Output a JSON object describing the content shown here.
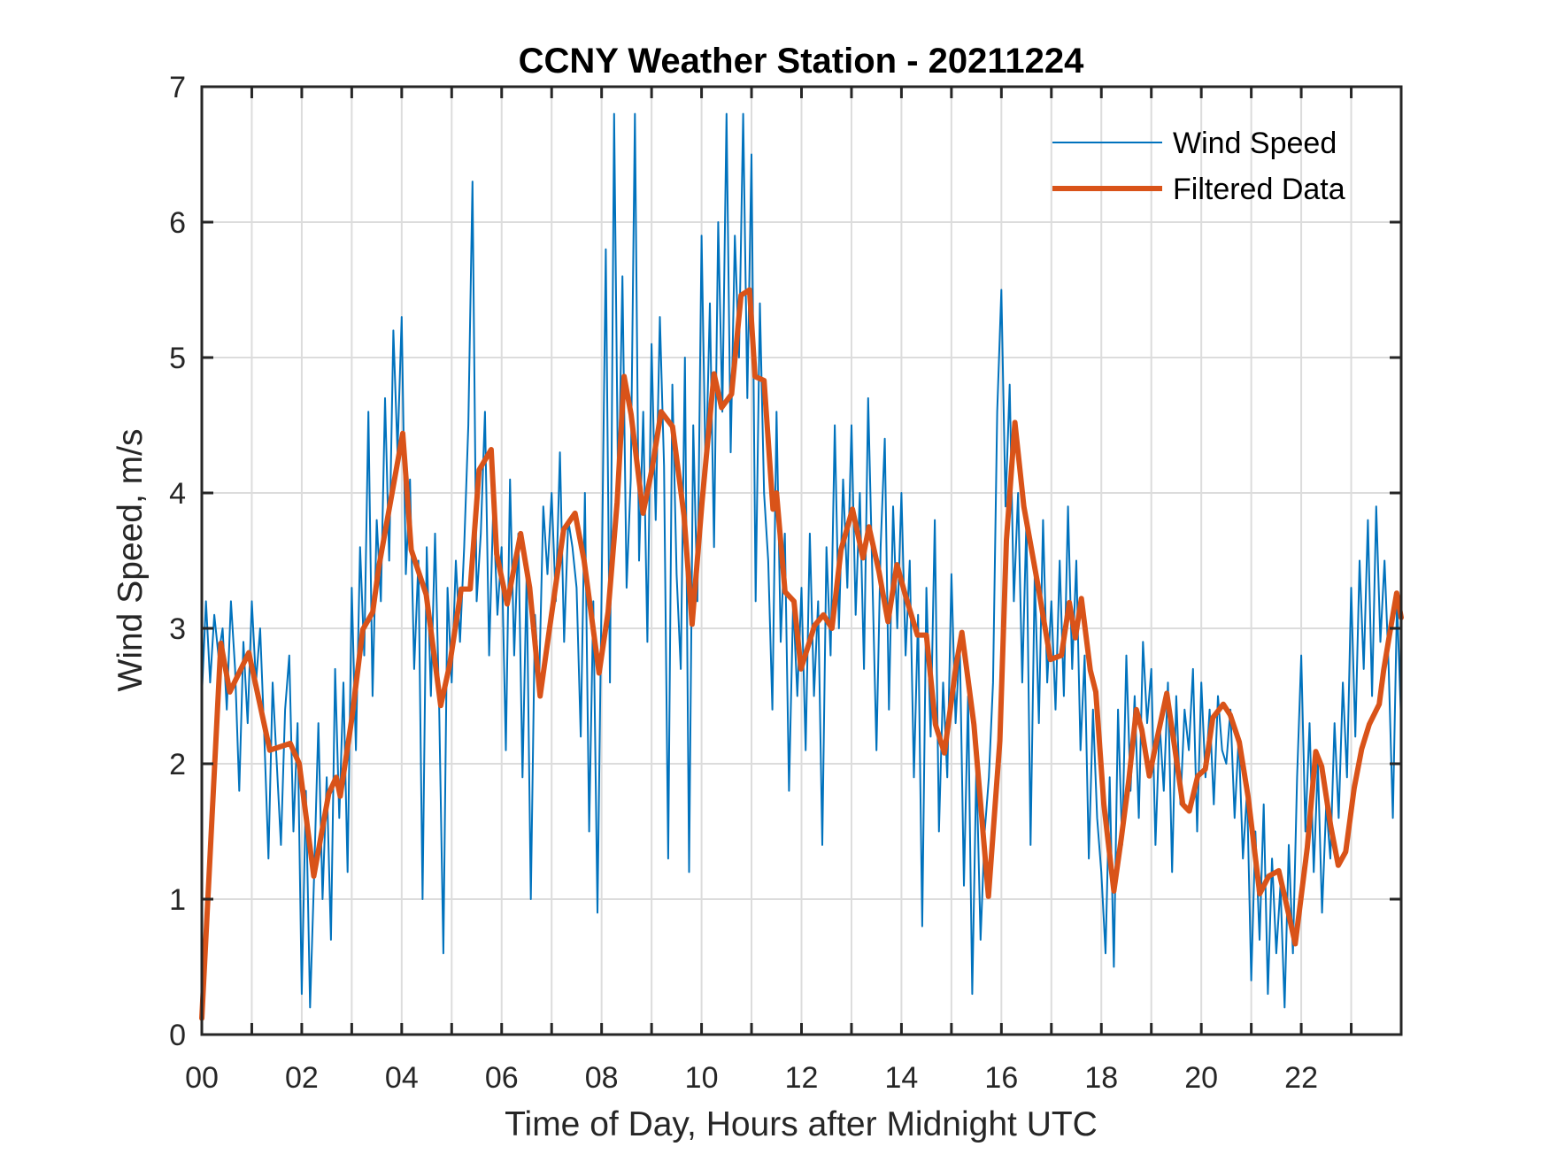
{
  "chart_data": {
    "type": "line",
    "title": "CCNY Weather Station - 20211224",
    "xlabel": "Time of Day, Hours after Midnight UTC",
    "ylabel": "Wind Speed, m/s",
    "xlim": [
      0,
      24
    ],
    "ylim": [
      0,
      7
    ],
    "grid": true,
    "legend_position": "top-right",
    "x_ticks": [
      0,
      2,
      4,
      6,
      8,
      10,
      12,
      14,
      16,
      18,
      20,
      22
    ],
    "x_tick_labels": [
      "00",
      "02",
      "04",
      "06",
      "08",
      "10",
      "12",
      "14",
      "16",
      "18",
      "20",
      "22"
    ],
    "x_minor_grid_step_hours": 1,
    "y_ticks": [
      0,
      1,
      2,
      3,
      4,
      5,
      6,
      7
    ],
    "y_tick_labels": [
      "0",
      "1",
      "2",
      "3",
      "4",
      "5",
      "6",
      "7"
    ],
    "series": [
      {
        "name": "Wind Speed",
        "color": "#0072BD",
        "sample_interval_hours": 0.0833333,
        "start_hour": 0,
        "values": [
          2.5,
          3.2,
          2.6,
          3.1,
          2.8,
          3.0,
          2.4,
          3.2,
          2.7,
          1.8,
          2.9,
          2.3,
          3.2,
          2.6,
          3.0,
          2.2,
          1.3,
          2.6,
          2.0,
          1.4,
          2.4,
          2.8,
          1.5,
          2.3,
          0.3,
          1.8,
          0.2,
          1.2,
          2.3,
          1.0,
          1.9,
          0.7,
          2.7,
          1.6,
          2.6,
          1.2,
          3.3,
          2.1,
          3.6,
          2.8,
          4.6,
          2.5,
          3.8,
          3.2,
          4.7,
          3.5,
          5.2,
          4.3,
          5.3,
          3.4,
          4.1,
          2.7,
          3.5,
          1.0,
          3.6,
          2.5,
          3.7,
          2.4,
          0.6,
          3.3,
          2.6,
          3.5,
          2.9,
          3.6,
          4.5,
          6.3,
          3.2,
          3.7,
          4.6,
          2.8,
          3.9,
          3.1,
          3.6,
          2.1,
          4.1,
          2.8,
          3.7,
          1.9,
          3.4,
          1.0,
          3.1,
          2.6,
          3.9,
          3.4,
          4.0,
          3.2,
          4.3,
          2.9,
          3.8,
          3.6,
          3.3,
          2.2,
          4.0,
          1.5,
          3.2,
          0.9,
          3.3,
          5.8,
          2.6,
          6.8,
          3.9,
          5.6,
          3.3,
          4.1,
          6.8,
          3.5,
          4.6,
          2.9,
          5.1,
          3.8,
          5.3,
          4.2,
          1.3,
          4.8,
          3.4,
          2.7,
          5.0,
          1.2,
          4.5,
          3.2,
          5.9,
          4.1,
          5.4,
          3.6,
          6.0,
          4.6,
          6.8,
          4.3,
          5.9,
          5.0,
          6.8,
          4.7,
          6.5,
          3.2,
          5.4,
          4.0,
          3.5,
          2.4,
          4.6,
          2.9,
          3.7,
          1.8,
          3.2,
          2.5,
          3.3,
          2.1,
          3.7,
          2.5,
          3.2,
          1.4,
          3.6,
          2.8,
          4.5,
          3.0,
          4.1,
          3.3,
          4.5,
          3.1,
          4.0,
          2.7,
          4.7,
          3.4,
          2.1,
          3.6,
          4.4,
          2.4,
          3.9,
          3.0,
          4.0,
          2.8,
          3.5,
          1.9,
          3.1,
          0.8,
          3.3,
          2.2,
          3.8,
          1.5,
          2.6,
          1.9,
          3.4,
          2.3,
          2.9,
          1.1,
          2.5,
          0.3,
          2.0,
          0.7,
          1.5,
          1.9,
          2.6,
          4.6,
          5.5,
          3.9,
          4.8,
          3.2,
          4.0,
          2.6,
          3.8,
          1.4,
          3.4,
          2.3,
          3.8,
          2.6,
          3.2,
          2.4,
          3.5,
          2.5,
          3.9,
          2.7,
          3.5,
          2.1,
          2.8,
          1.3,
          2.4,
          1.6,
          1.2,
          0.6,
          1.9,
          0.5,
          2.4,
          1.4,
          2.8,
          1.8,
          2.5,
          1.6,
          2.9,
          2.3,
          2.7,
          1.4,
          2.3,
          1.8,
          2.6,
          1.2,
          2.5,
          1.7,
          2.4,
          2.1,
          2.7,
          1.5,
          2.6,
          1.9,
          2.4,
          1.7,
          2.5,
          2.1,
          2.0,
          2.4,
          1.6,
          2.2,
          1.3,
          1.8,
          0.4,
          1.5,
          0.7,
          1.7,
          0.3,
          1.3,
          0.6,
          1.1,
          0.2,
          1.4,
          0.6,
          1.9,
          2.8,
          1.5,
          2.3,
          1.2,
          2.0,
          0.9,
          1.7,
          1.3,
          2.3,
          1.6,
          2.6,
          1.9,
          3.3,
          2.2,
          3.5,
          2.7,
          3.8,
          2.5,
          3.9,
          2.9,
          3.5,
          2.7,
          1.6,
          3.2,
          2.3
        ]
      },
      {
        "name": "Filtered Data",
        "color": "#D95319",
        "x": [
          0.0,
          0.38,
          0.56,
          0.94,
          1.36,
          1.77,
          1.95,
          2.24,
          2.54,
          2.69,
          2.77,
          3.0,
          3.22,
          3.42,
          3.54,
          4.02,
          4.19,
          4.49,
          4.78,
          4.96,
          5.19,
          5.37,
          5.55,
          5.79,
          5.9,
          6.11,
          6.38,
          6.56,
          6.77,
          6.94,
          7.24,
          7.47,
          7.65,
          7.95,
          8.13,
          8.31,
          8.45,
          8.59,
          8.83,
          9.01,
          9.19,
          9.42,
          9.65,
          9.81,
          10.01,
          10.25,
          10.4,
          10.6,
          10.79,
          10.96,
          11.07,
          11.25,
          11.43,
          11.5,
          11.67,
          11.85,
          11.99,
          12.26,
          12.44,
          12.61,
          12.79,
          13.02,
          13.23,
          13.35,
          13.55,
          13.73,
          13.91,
          14.09,
          14.32,
          14.5,
          14.68,
          14.86,
          15.09,
          15.21,
          15.45,
          15.74,
          15.97,
          16.1,
          16.27,
          16.45,
          16.74,
          16.98,
          17.2,
          17.36,
          17.48,
          17.6,
          17.78,
          17.89,
          18.05,
          18.25,
          18.4,
          18.55,
          18.7,
          18.81,
          18.96,
          19.13,
          19.31,
          19.46,
          19.63,
          19.76,
          19.93,
          20.08,
          20.23,
          20.44,
          20.58,
          20.76,
          20.94,
          21.17,
          21.35,
          21.55,
          21.7,
          21.88,
          22.12,
          22.29,
          22.41,
          22.59,
          22.74,
          22.89,
          23.06,
          23.21,
          23.36,
          23.56,
          23.65,
          23.77,
          23.91,
          24.0
        ],
        "y": [
          0.12,
          2.89,
          2.53,
          2.82,
          2.1,
          2.15,
          2.0,
          1.17,
          1.78,
          1.9,
          1.76,
          2.33,
          2.99,
          3.12,
          3.45,
          4.44,
          3.58,
          3.25,
          2.43,
          2.73,
          3.29,
          3.29,
          4.17,
          4.32,
          3.55,
          3.18,
          3.7,
          3.3,
          2.5,
          2.95,
          3.73,
          3.85,
          3.5,
          2.67,
          3.12,
          3.93,
          4.86,
          4.58,
          3.85,
          4.18,
          4.6,
          4.49,
          3.83,
          3.03,
          3.93,
          4.88,
          4.63,
          4.73,
          5.46,
          5.5,
          4.86,
          4.83,
          3.88,
          4.0,
          3.27,
          3.2,
          2.7,
          3.02,
          3.1,
          3.0,
          3.58,
          3.88,
          3.52,
          3.75,
          3.42,
          3.05,
          3.47,
          3.23,
          2.95,
          2.95,
          2.29,
          2.08,
          2.72,
          2.97,
          2.29,
          1.02,
          2.17,
          3.65,
          4.52,
          3.9,
          3.3,
          2.77,
          2.8,
          3.19,
          2.93,
          3.22,
          2.69,
          2.53,
          1.7,
          1.06,
          1.45,
          1.88,
          2.4,
          2.25,
          1.91,
          2.21,
          2.52,
          2.14,
          1.7,
          1.65,
          1.91,
          1.96,
          2.34,
          2.44,
          2.36,
          2.16,
          1.75,
          1.04,
          1.17,
          1.21,
          0.97,
          0.67,
          1.38,
          2.09,
          1.98,
          1.54,
          1.25,
          1.35,
          1.82,
          2.11,
          2.29,
          2.44,
          2.69,
          2.96,
          3.26,
          3.08
        ]
      }
    ]
  }
}
